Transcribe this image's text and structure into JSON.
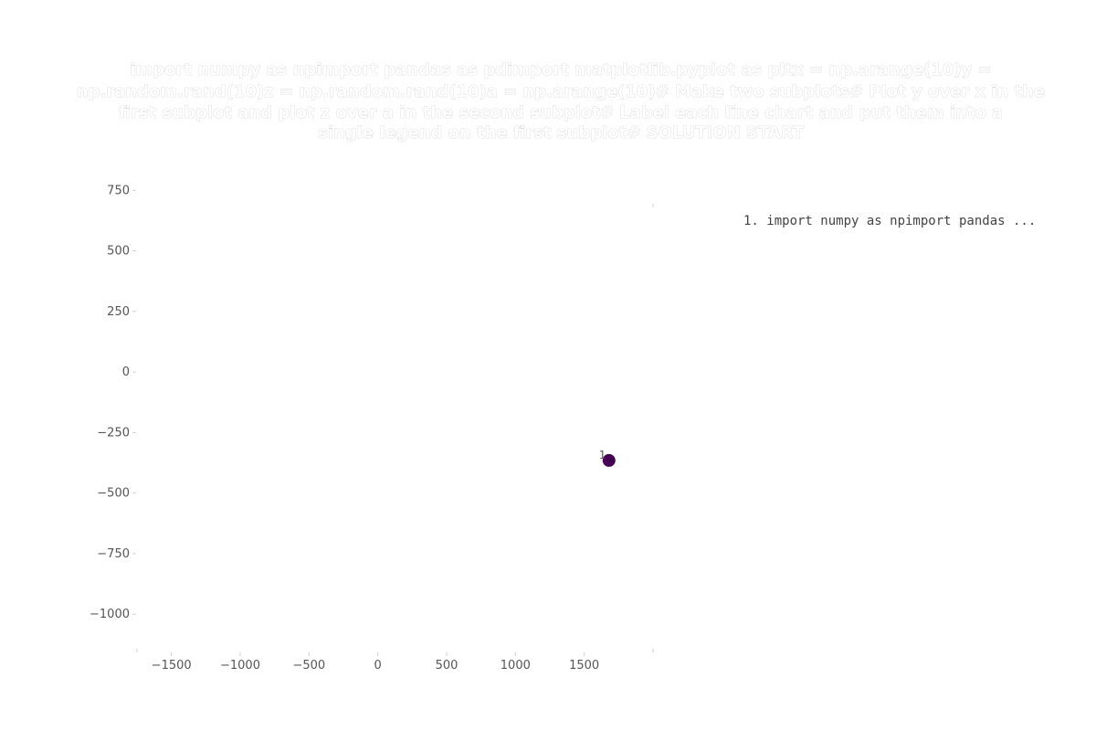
{
  "chart_data": {
    "type": "scatter",
    "title_lines": [
      "import numpy as npimport pandas as pdimport matplotlib.pyplot as pltx = np.arange(10)y =",
      "np.random.rand(10)z = np.random.rand(10)a = np.arange(10)# Make two subplots# Plot y over x in the",
      "first subplot and plot z over a in the second subplot# Label each line chart and put them into a",
      "single legend on the first subplot# SOLUTION START"
    ],
    "xlabel": "",
    "ylabel": "",
    "xlim": [
      -1750,
      2000
    ],
    "ylim": [
      -1150,
      800
    ],
    "x_ticks": [
      -1500,
      -1000,
      -500,
      0,
      500,
      1000,
      1500
    ],
    "x_tick_labels": [
      "−1500",
      "−1000",
      "−500",
      "0",
      "500",
      "1000",
      "1500"
    ],
    "y_ticks": [
      750,
      500,
      250,
      0,
      -250,
      -500,
      -750,
      -1000
    ],
    "y_tick_labels": [
      "750",
      "500",
      "250",
      "0",
      "−250",
      "−500",
      "−750",
      "−1000"
    ],
    "grid": false,
    "points": [
      {
        "x": 1680,
        "y": -365,
        "label": "1",
        "color": "#440154"
      }
    ],
    "legend_position": "top-right",
    "legend_entries": [
      "1. import numpy as npimport pandas ..."
    ]
  }
}
